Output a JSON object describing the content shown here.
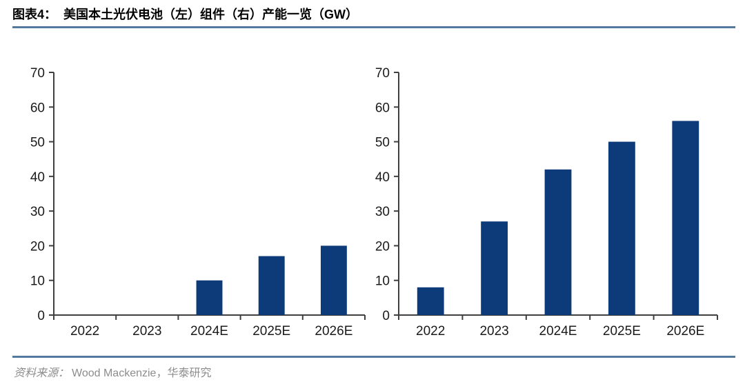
{
  "header": {
    "figure_label": "图表4：",
    "title": "美国本土光伏电池（左）组件（右）产能一览（GW）"
  },
  "footer": {
    "label": "资料来源：",
    "text": "Wood Mackenzie，华泰研究"
  },
  "theme": {
    "bar_color": "#0d3a78",
    "axis_color": "#3f3f3f",
    "tick_label_color": "#1a1a1a",
    "rule_color": "#53799f",
    "source_color": "#8c8c8c"
  },
  "chart_data": [
    {
      "type": "bar",
      "position": "left",
      "series_label": "电池（左）",
      "unit": "GW",
      "categories": [
        "2022",
        "2023",
        "2024E",
        "2025E",
        "2026E"
      ],
      "values": [
        0,
        0,
        10,
        17,
        20
      ],
      "ylim": [
        0,
        70
      ],
      "ytick_step": 10,
      "grid": false,
      "legend": "none"
    },
    {
      "type": "bar",
      "position": "right",
      "series_label": "组件（右）",
      "unit": "GW",
      "categories": [
        "2022",
        "2023",
        "2024E",
        "2025E",
        "2026E"
      ],
      "values": [
        8,
        27,
        42,
        50,
        56
      ],
      "ylim": [
        0,
        70
      ],
      "ytick_step": 10,
      "grid": false,
      "legend": "none"
    }
  ]
}
